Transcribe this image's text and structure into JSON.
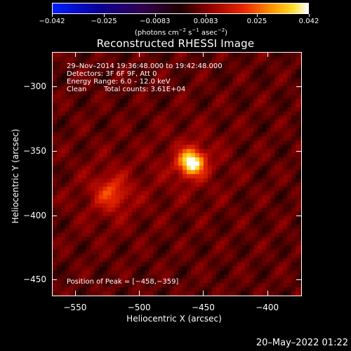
{
  "colorbar": {
    "min": -0.042,
    "max": 0.042,
    "tick_labels": [
      "−0.042",
      "−0.025",
      "−0.0083",
      "0.0083",
      "0.025",
      "0.042"
    ],
    "tick_values": [
      -0.042,
      -0.025,
      -0.0083,
      0.0083,
      0.025,
      0.042
    ],
    "unit_main": "(photons cm",
    "unit_exp1": "−2",
    "unit_s": " s",
    "unit_exp2": "−1",
    "unit_asec": " asec",
    "unit_exp3": "−2",
    "unit_close": ")"
  },
  "title": "Reconstructed RHESSI Image",
  "info": {
    "time_range": "29–Nov–2014 19:36:48.000 to 19:42:48.000",
    "detectors": "Detectors: 3F 6F 9F, Att 0",
    "energy": "Energy Range: 6.0 – 12.0 keV",
    "clean": "Clean",
    "total_counts": "Total counts: 3.61E+04",
    "peak_position": "Position of Peak = [−458,−359]"
  },
  "axes": {
    "xlabel": "Heliocentric X (arcsec)",
    "ylabel": "Heliocentric Y (arcsec)",
    "xlim": [
      -568,
      -373
    ],
    "ylim": [
      -463,
      -273
    ],
    "x_ticks": [
      -550,
      -500,
      -450,
      -400
    ],
    "x_tick_labels": [
      "−550",
      "−500",
      "−450",
      "−400"
    ],
    "y_ticks": [
      -300,
      -350,
      -400,
      -450
    ],
    "y_tick_labels": [
      "−300",
      "−350",
      "−400",
      "−450"
    ]
  },
  "sources": [
    {
      "x": -459,
      "y": -359,
      "amplitude": 1.0
    },
    {
      "x": -522,
      "y": -383,
      "amplitude": 0.45
    }
  ],
  "timestamp": "20–May–2022 01:22"
}
